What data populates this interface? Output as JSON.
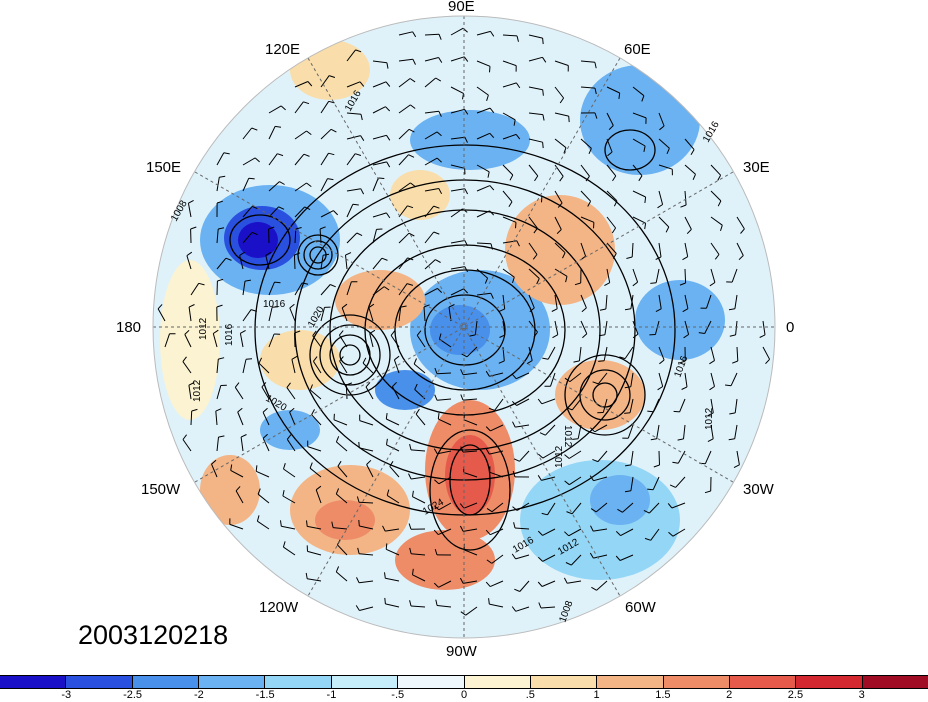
{
  "date_stamp": "2003120218",
  "longitude_labels": {
    "e90": "90E",
    "e120": "120E",
    "e60": "60E",
    "e150": "150E",
    "e30": "30E",
    "d180": "180",
    "d0": "0",
    "w150": "150W",
    "w30": "30W",
    "w120": "120W",
    "w60": "60W",
    "w90": "90W"
  },
  "contour_labels": [
    "1016",
    "1016",
    "1016",
    "1020",
    "1020",
    "1012",
    "1016",
    "1012",
    "1008",
    "1012",
    "1012",
    "1016",
    "1024",
    "1016",
    "1012",
    "1008",
    "1012"
  ],
  "colorbar": {
    "colors": [
      "#1a10c8",
      "#2a50e0",
      "#4890ea",
      "#6ab2f2",
      "#94d6f6",
      "#c6eefa",
      "#eef8fc",
      "#fbf3d2",
      "#f9ddaa",
      "#f3b486",
      "#ee8c68",
      "#e65a4c",
      "#d42830",
      "#a00c24"
    ],
    "tick_labels": [
      "-3",
      "-2.5",
      "-2",
      "-1.5",
      "-1",
      "-.5",
      "0",
      ".5",
      "1",
      "1.5",
      "2",
      "2.5",
      "3"
    ]
  }
}
